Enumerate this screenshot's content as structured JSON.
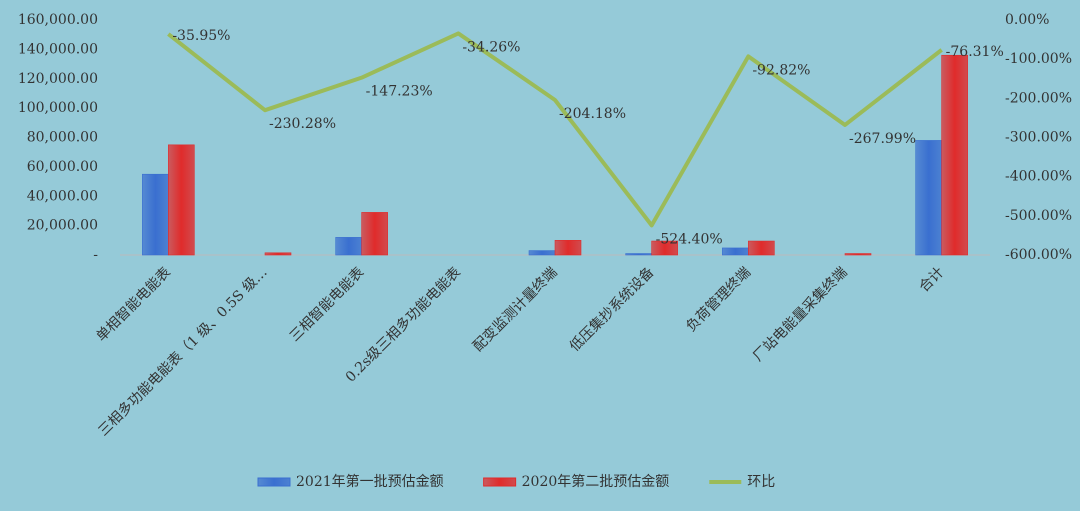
{
  "chart_data": {
    "type": "bar_line",
    "categories": [
      "单相智能电能表",
      "三相多功能电能表（1 级、0.5S 级…",
      "三相智能电能表",
      "0.2s级三相多功能电能表",
      "配变监测计量终端",
      "低压集抄系统设备",
      "负荷管理终端",
      "厂站电能量采集终端",
      "合计"
    ],
    "series": [
      {
        "name": "2021年第一批预估金额",
        "color": "#3a6fd0",
        "values": [
          55000,
          0,
          12000,
          0,
          3000,
          1000,
          4800,
          0,
          78000
        ]
      },
      {
        "name": "2020年第二批预估金额",
        "color": "#e02b2b",
        "values": [
          75000,
          1500,
          29000,
          0,
          10000,
          9500,
          9500,
          1000,
          136000
        ]
      },
      {
        "name": "环比",
        "color": "#9bbb59",
        "axis": "y2",
        "values": [
          -35.95,
          -230.28,
          -147.23,
          -34.26,
          -204.18,
          -524.4,
          -92.82,
          -267.99,
          -76.31
        ],
        "value_labels": [
          "-35.95%",
          "-230.28%",
          "-147.23%",
          "-34.26%",
          "-204.18%",
          "-524.40%",
          "-92.82%",
          "-267.99%",
          "-76.31%"
        ]
      }
    ],
    "ylim": [
      0,
      160000
    ],
    "yticks": [
      {
        "value": 0,
        "label": "-"
      },
      {
        "value": 20000,
        "label": "20,000.00"
      },
      {
        "value": 40000,
        "label": "40,000.00"
      },
      {
        "value": 60000,
        "label": "60,000.00"
      },
      {
        "value": 80000,
        "label": "80,000.00"
      },
      {
        "value": 100000,
        "label": "100,000.00"
      },
      {
        "value": 120000,
        "label": "120,000.00"
      },
      {
        "value": 140000,
        "label": "140,000.00"
      },
      {
        "value": 160000,
        "label": "160,000.00"
      }
    ],
    "y2lim": [
      -600,
      0
    ],
    "y2ticks": [
      {
        "value": 0,
        "label": "0.00%"
      },
      {
        "value": -100,
        "label": "-100.00%"
      },
      {
        "value": -200,
        "label": "-200.00%"
      },
      {
        "value": -300,
        "label": "-300.00%"
      },
      {
        "value": -400,
        "label": "-400.00%"
      },
      {
        "value": -500,
        "label": "-500.00%"
      },
      {
        "value": -600,
        "label": "-600.00%"
      }
    ],
    "legend": "bottom"
  }
}
